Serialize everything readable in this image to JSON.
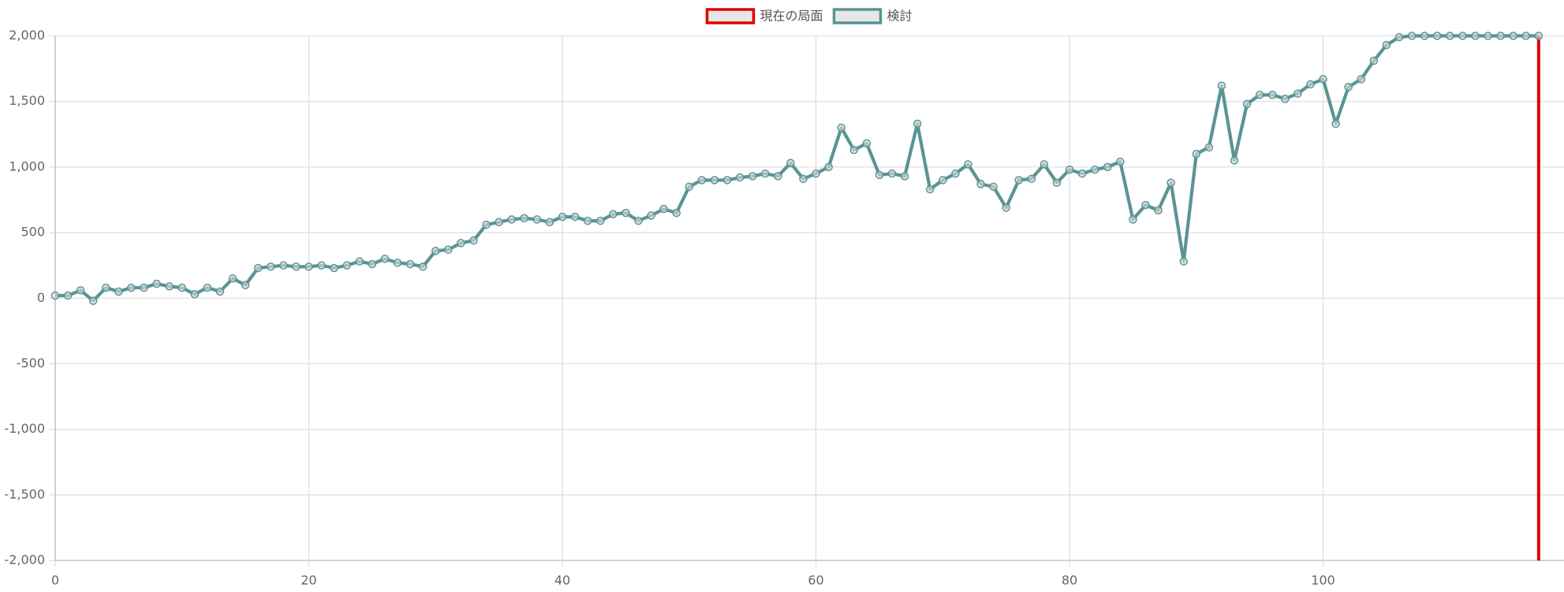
{
  "chart_data": {
    "type": "line",
    "legend": "top",
    "grid": true,
    "x": [
      0,
      1,
      2,
      3,
      4,
      5,
      6,
      7,
      8,
      9,
      10,
      11,
      12,
      13,
      14,
      15,
      16,
      17,
      18,
      19,
      20,
      21,
      22,
      23,
      24,
      25,
      26,
      27,
      28,
      29,
      30,
      31,
      32,
      33,
      34,
      35,
      36,
      37,
      38,
      39,
      40,
      41,
      42,
      43,
      44,
      45,
      46,
      47,
      48,
      49,
      50,
      51,
      52,
      53,
      54,
      55,
      56,
      57,
      58,
      59,
      60,
      61,
      62,
      63,
      64,
      65,
      66,
      67,
      68,
      69,
      70,
      71,
      72,
      73,
      74,
      75,
      76,
      77,
      78,
      79,
      80,
      81,
      82,
      83,
      84,
      85,
      86,
      87,
      88,
      89,
      90,
      91,
      92,
      93,
      94,
      95,
      96,
      97,
      98,
      99,
      100,
      101,
      102,
      103,
      104,
      105,
      106,
      107,
      108,
      109,
      110,
      111,
      112,
      113,
      114,
      115,
      116,
      117
    ],
    "series": [
      {
        "name": "現在の局面",
        "color": "#e00000",
        "x": [
          117,
          117
        ],
        "values": [
          -2000,
          2000
        ]
      },
      {
        "name": "検討",
        "color": "#5a9494",
        "values": [
          20,
          20,
          60,
          -20,
          80,
          50,
          80,
          80,
          110,
          90,
          80,
          30,
          80,
          50,
          150,
          100,
          230,
          240,
          250,
          240,
          240,
          250,
          230,
          250,
          280,
          260,
          300,
          270,
          260,
          240,
          360,
          370,
          420,
          440,
          560,
          580,
          600,
          610,
          600,
          580,
          620,
          620,
          590,
          590,
          640,
          650,
          590,
          630,
          680,
          650,
          850,
          900,
          900,
          900,
          920,
          930,
          950,
          930,
          1030,
          910,
          950,
          1000,
          1300,
          1130,
          1180,
          940,
          950,
          930,
          1330,
          830,
          900,
          950,
          1020,
          870,
          850,
          690,
          900,
          910,
          1020,
          880,
          980,
          950,
          980,
          1000,
          1040,
          600,
          710,
          670,
          880,
          280,
          1100,
          1150,
          1620,
          1050,
          1480,
          1550,
          1550,
          1520,
          1560,
          1630,
          1670,
          1330,
          1610,
          1670,
          1810,
          1930,
          1990,
          2000,
          2000,
          2000,
          2000,
          2000,
          2000,
          2000,
          2000,
          2000,
          2000,
          2000
        ]
      }
    ],
    "xlim": [
      0,
      119
    ],
    "xticks": [
      0,
      20,
      40,
      60,
      80,
      100
    ],
    "ylim": [
      -2000,
      2000
    ],
    "yticks": [
      {
        "value": -2000,
        "label": "-2,000"
      },
      {
        "value": -1500,
        "label": "-1,500"
      },
      {
        "value": -1000,
        "label": "-1,000"
      },
      -500,
      0,
      500,
      {
        "value": 1000,
        "label": "1,000"
      },
      {
        "value": 1500,
        "label": "1,500"
      },
      {
        "value": 2000,
        "label": "2,000"
      }
    ]
  }
}
